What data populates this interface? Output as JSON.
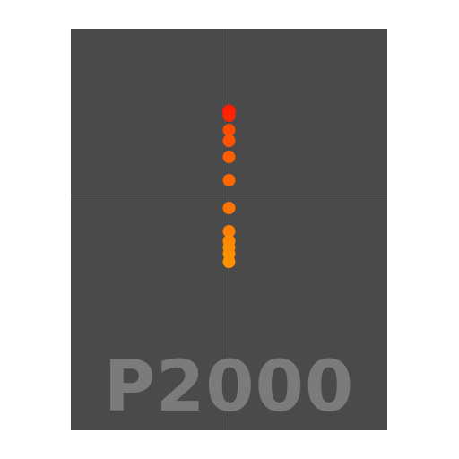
{
  "model_label": "P2000",
  "colors": {
    "background": "#ffffff",
    "panel": "#4a4a4a",
    "crosshair": "#6a6a6a",
    "label": "#7b7b7b"
  },
  "points": [
    {
      "color": "#ff1a00"
    },
    {
      "color": "#ff2500"
    },
    {
      "color": "#ff4a00"
    },
    {
      "color": "#ff5200"
    },
    {
      "color": "#ff5e00"
    },
    {
      "color": "#ff6800"
    },
    {
      "color": "#ff7400"
    },
    {
      "color": "#ff8000"
    },
    {
      "color": "#ff8800"
    },
    {
      "color": "#ff8c00"
    },
    {
      "color": "#ff8f00"
    },
    {
      "color": "#ff9200"
    }
  ]
}
